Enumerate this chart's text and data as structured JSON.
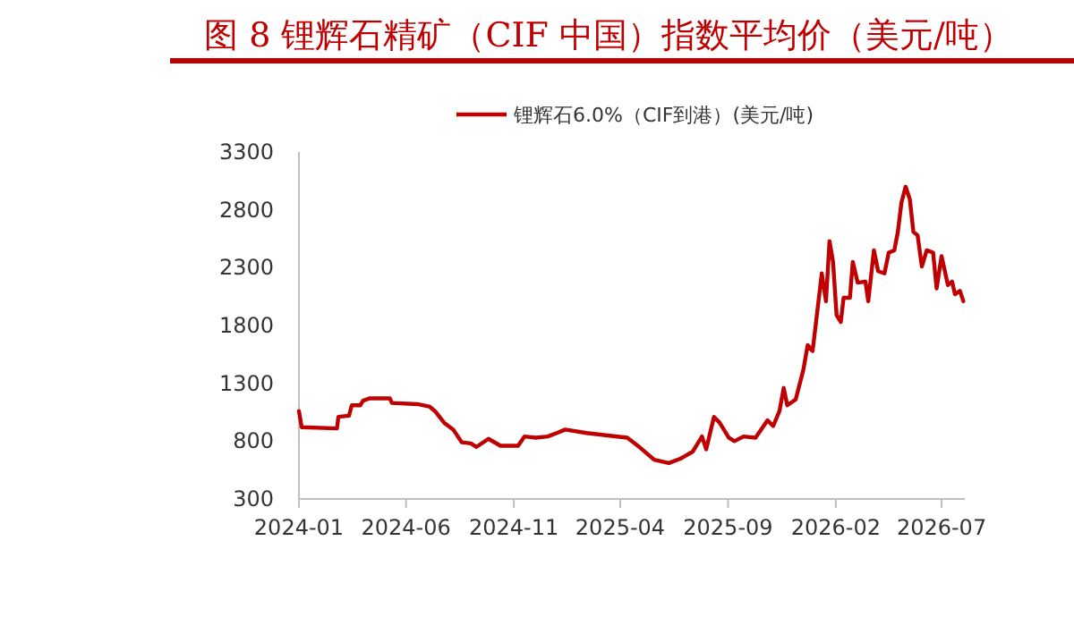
{
  "chart_data": {
    "type": "line",
    "title": "图 8 锂辉石精矿（CIF 中国）指数平均价（美元/吨）",
    "x": [
      "2024-01-01",
      "2024-01-05",
      "2024-02-24",
      "2024-02-26",
      "2024-03-12",
      "2024-03-16",
      "2024-03-28",
      "2024-04-01",
      "2024-04-10",
      "2024-05-09",
      "2024-05-12",
      "2024-06-17",
      "2024-07-04",
      "2024-07-12",
      "2024-07-25",
      "2024-08-07",
      "2024-08-19",
      "2024-09-01",
      "2024-09-09",
      "2024-09-26",
      "2024-10-13",
      "2024-11-07",
      "2024-11-16",
      "2024-12-02",
      "2024-12-19",
      "2025-01-01",
      "2025-01-13",
      "2025-02-12",
      "2025-04-11",
      "2025-04-28",
      "2025-05-19",
      "2025-06-09",
      "2025-06-26",
      "2025-07-13",
      "2025-07-26",
      "2025-08-01",
      "2025-08-12",
      "2025-08-20",
      "2025-09-02",
      "2025-09-10",
      "2025-09-23",
      "2025-10-10",
      "2025-10-27",
      "2025-11-04",
      "2025-11-13",
      "2025-11-19",
      "2025-11-24",
      "2025-12-06",
      "2025-12-17",
      "2025-12-23",
      "2025-12-30",
      "2026-01-06",
      "2026-01-12",
      "2026-01-18",
      "2026-01-23",
      "2026-01-28",
      "2026-02-02",
      "2026-02-08",
      "2026-02-12",
      "2026-02-21",
      "2026-02-25",
      "2026-03-04",
      "2026-03-15",
      "2026-03-19",
      "2026-03-27",
      "2026-04-02",
      "2026-04-11",
      "2026-04-17",
      "2026-04-25",
      "2026-04-30",
      "2026-05-05",
      "2026-05-11",
      "2026-05-17",
      "2026-05-22",
      "2026-05-28",
      "2026-06-03",
      "2026-06-10",
      "2026-06-19",
      "2026-06-24",
      "2026-07-01",
      "2026-07-10",
      "2026-07-16",
      "2026-07-20",
      "2026-07-27",
      "2026-08-01"
    ],
    "series": [
      {
        "name": "锂辉石6.0%（CIF到港）(美元/吨)",
        "color": "#c00000",
        "values": [
          1060,
          920,
          910,
          1010,
          1020,
          1110,
          1110,
          1150,
          1170,
          1170,
          1130,
          1120,
          1100,
          1060,
          960,
          900,
          790,
          780,
          750,
          820,
          760,
          760,
          840,
          830,
          840,
          870,
          900,
          870,
          830,
          750,
          640,
          610,
          650,
          710,
          840,
          730,
          1010,
          960,
          830,
          800,
          840,
          830,
          980,
          930,
          1060,
          1260,
          1110,
          1160,
          1420,
          1630,
          1580,
          1940,
          2250,
          2010,
          2530,
          2350,
          1890,
          1830,
          2040,
          2040,
          2350,
          2170,
          2180,
          2010,
          2450,
          2270,
          2250,
          2430,
          2450,
          2610,
          2860,
          3000,
          2890,
          2610,
          2580,
          2310,
          2450,
          2430,
          2120,
          2400,
          2150,
          2180,
          2070,
          2100,
          2010
        ]
      }
    ],
    "xlim": [
      "2024-01-01",
      "2026-08-03"
    ],
    "xticks": [
      {
        "value": "2024-01-01",
        "label": "2024-01"
      },
      {
        "value": "2024-06-01",
        "label": "2024-06"
      },
      {
        "value": "2024-11-01",
        "label": "2024-11"
      },
      {
        "value": "2025-04-01",
        "label": "2025-04"
      },
      {
        "value": "2025-09-01",
        "label": "2025-09"
      },
      {
        "value": "2026-02-01",
        "label": "2026-02"
      },
      {
        "value": "2026-07-01",
        "label": "2026-07"
      }
    ],
    "ylim": [
      300,
      3300
    ],
    "yticks": [
      300,
      800,
      1300,
      1800,
      2300,
      2800,
      3300
    ],
    "grid": false,
    "legend": "top",
    "marker": "none",
    "line_style": "solid"
  }
}
